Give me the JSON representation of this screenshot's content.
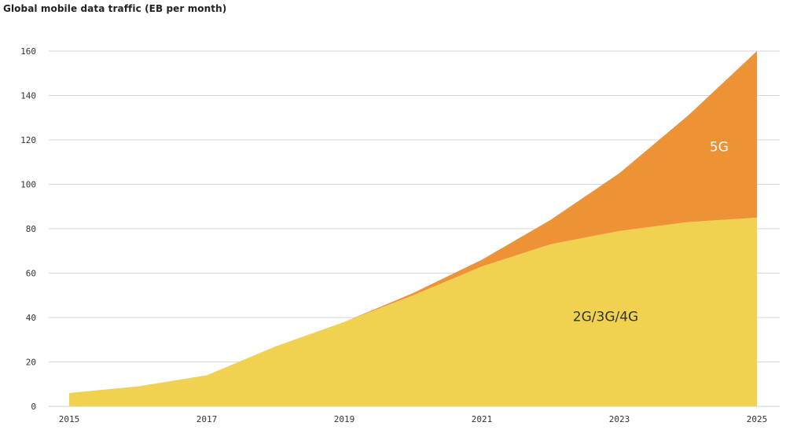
{
  "chart_data": {
    "type": "area",
    "title": "Global mobile data traffic (EB per month)",
    "xlabel": "",
    "ylabel": "",
    "x": [
      2015,
      2016,
      2017,
      2018,
      2019,
      2020,
      2021,
      2022,
      2023,
      2024,
      2025
    ],
    "x_tick_labels": [
      "2015",
      "2017",
      "2019",
      "2021",
      "2023",
      "2025"
    ],
    "y_tick_labels": [
      "0",
      "20",
      "40",
      "60",
      "80",
      "100",
      "120",
      "140",
      "160"
    ],
    "xlim": [
      2015,
      2025
    ],
    "ylim": [
      0,
      160
    ],
    "grid": true,
    "stacked": true,
    "series": [
      {
        "name": "2G/3G/4G",
        "color": "#f1d150",
        "label_color": "#333333",
        "values": [
          6,
          9,
          14,
          27,
          38,
          50,
          63,
          73,
          79,
          83,
          85
        ]
      },
      {
        "name": "5G",
        "color": "#ee9236",
        "label_color": "#ffffff",
        "values": [
          0,
          0,
          0,
          0,
          0,
          1,
          3,
          11,
          26,
          48,
          75
        ]
      }
    ]
  }
}
